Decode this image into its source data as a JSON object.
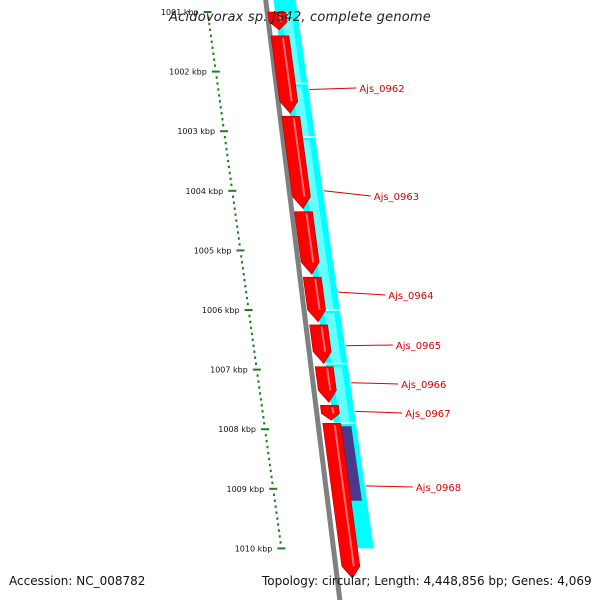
{
  "title": "Acidovorax sp. JS42, complete genome",
  "footer": {
    "accession": "Accession: NC_008782",
    "summary": "Topology: circular; Length: 4,448,856 bp; Genes: 4,069"
  },
  "colors": {
    "gene_forward": "#ff0000",
    "gene_reverse": "#00ffff",
    "gene_reverse_highlight": "#4b3a8c",
    "backbone": "#808080",
    "ticks": "#1a7f1a",
    "labels": "#dd0000"
  },
  "scale_labels": [
    "1001 kbp",
    "1002 kbp",
    "1003 kbp",
    "1004 kbp",
    "1005 kbp",
    "1006 kbp",
    "1007 kbp",
    "1008 kbp",
    "1009 kbp",
    "1010 kbp"
  ],
  "gene_labels": [
    "Ajs_0962",
    "Ajs_0963",
    "Ajs_0964",
    "Ajs_0965",
    "Ajs_0966",
    "Ajs_0967",
    "Ajs_0968"
  ],
  "chart_data": {
    "type": "genome-map",
    "region_kbp": [
      1001,
      1010
    ],
    "forward_genes_kbp": [
      [
        1001.0,
        1001.3
      ],
      [
        1001.4,
        1002.7
      ],
      [
        1002.75,
        1004.3
      ],
      [
        1004.35,
        1005.4
      ],
      [
        1005.45,
        1006.2
      ],
      [
        1006.25,
        1006.9
      ],
      [
        1006.95,
        1007.55
      ],
      [
        1007.6,
        1007.85
      ],
      [
        1007.9,
        1010.5
      ]
    ],
    "reverse_genes_kbp": [
      [
        1001.0,
        1002.2
      ],
      [
        1002.25,
        1003.1
      ],
      [
        1003.15,
        1006.0
      ],
      [
        1006.05,
        1006.9
      ],
      [
        1006.95,
        1007.9
      ]
    ],
    "highlight_genes_kbp": [
      [
        1007.95,
        1009.2
      ]
    ]
  }
}
